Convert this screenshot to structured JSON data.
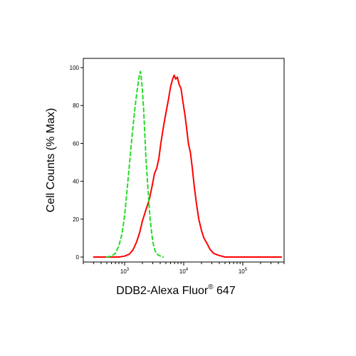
{
  "chart_data": {
    "type": "line",
    "xlabel": "DDB2-Alexa Fluor",
    "xlabel_superscript": "®",
    "xlabel_suffix": " 647",
    "ylabel": "Cell Counts (% Max)",
    "x_scale": "log",
    "xlim": [
      200,
      500000
    ],
    "ylim": [
      0,
      100
    ],
    "y_ticks": [
      "0",
      "20",
      "40",
      "60",
      "80",
      "100"
    ],
    "x_ticks": [
      {
        "base": "10",
        "exp": "3",
        "value": 1000
      },
      {
        "base": "10",
        "exp": "4",
        "value": 10000
      },
      {
        "base": "10",
        "exp": "5",
        "value": 100000
      }
    ],
    "grid": false,
    "series": [
      {
        "color": "#ff0000",
        "style": "solid",
        "points": [
          [
            300,
            0
          ],
          [
            800,
            0
          ],
          [
            1000,
            0.5
          ],
          [
            1200,
            1.5
          ],
          [
            1400,
            4
          ],
          [
            1600,
            8
          ],
          [
            1800,
            13
          ],
          [
            2000,
            19
          ],
          [
            2300,
            25
          ],
          [
            2600,
            30
          ],
          [
            2900,
            37
          ],
          [
            3200,
            44
          ],
          [
            3500,
            47
          ],
          [
            3800,
            52
          ],
          [
            4100,
            60
          ],
          [
            4500,
            68
          ],
          [
            5000,
            76
          ],
          [
            5500,
            83
          ],
          [
            6000,
            90
          ],
          [
            6500,
            94
          ],
          [
            6900,
            96
          ],
          [
            7300,
            94
          ],
          [
            7800,
            95
          ],
          [
            8400,
            91
          ],
          [
            9000,
            89
          ],
          [
            9700,
            82
          ],
          [
            10500,
            75
          ],
          [
            11200,
            68
          ],
          [
            12000,
            60
          ],
          [
            13000,
            55
          ],
          [
            14000,
            47
          ],
          [
            15000,
            38
          ],
          [
            16500,
            28
          ],
          [
            18000,
            20
          ],
          [
            20000,
            14
          ],
          [
            22000,
            10
          ],
          [
            25000,
            7
          ],
          [
            28000,
            4
          ],
          [
            32000,
            2
          ],
          [
            38000,
            1
          ],
          [
            50000,
            0
          ],
          [
            450000,
            0
          ]
        ]
      },
      {
        "color": "#22dd22",
        "style": "dashed",
        "points": [
          [
            500,
            0
          ],
          [
            600,
            0.5
          ],
          [
            700,
            2
          ],
          [
            800,
            6
          ],
          [
            900,
            12
          ],
          [
            1000,
            22
          ],
          [
            1100,
            35
          ],
          [
            1200,
            48
          ],
          [
            1300,
            60
          ],
          [
            1400,
            70
          ],
          [
            1500,
            79
          ],
          [
            1600,
            86
          ],
          [
            1700,
            92
          ],
          [
            1800,
            97
          ],
          [
            1850,
            98
          ],
          [
            1900,
            96
          ],
          [
            2000,
            88
          ],
          [
            2100,
            78
          ],
          [
            2200,
            65
          ],
          [
            2300,
            52
          ],
          [
            2500,
            35
          ],
          [
            2700,
            20
          ],
          [
            3000,
            8
          ],
          [
            3300,
            3
          ],
          [
            3700,
            1
          ],
          [
            4500,
            0
          ]
        ]
      }
    ]
  }
}
